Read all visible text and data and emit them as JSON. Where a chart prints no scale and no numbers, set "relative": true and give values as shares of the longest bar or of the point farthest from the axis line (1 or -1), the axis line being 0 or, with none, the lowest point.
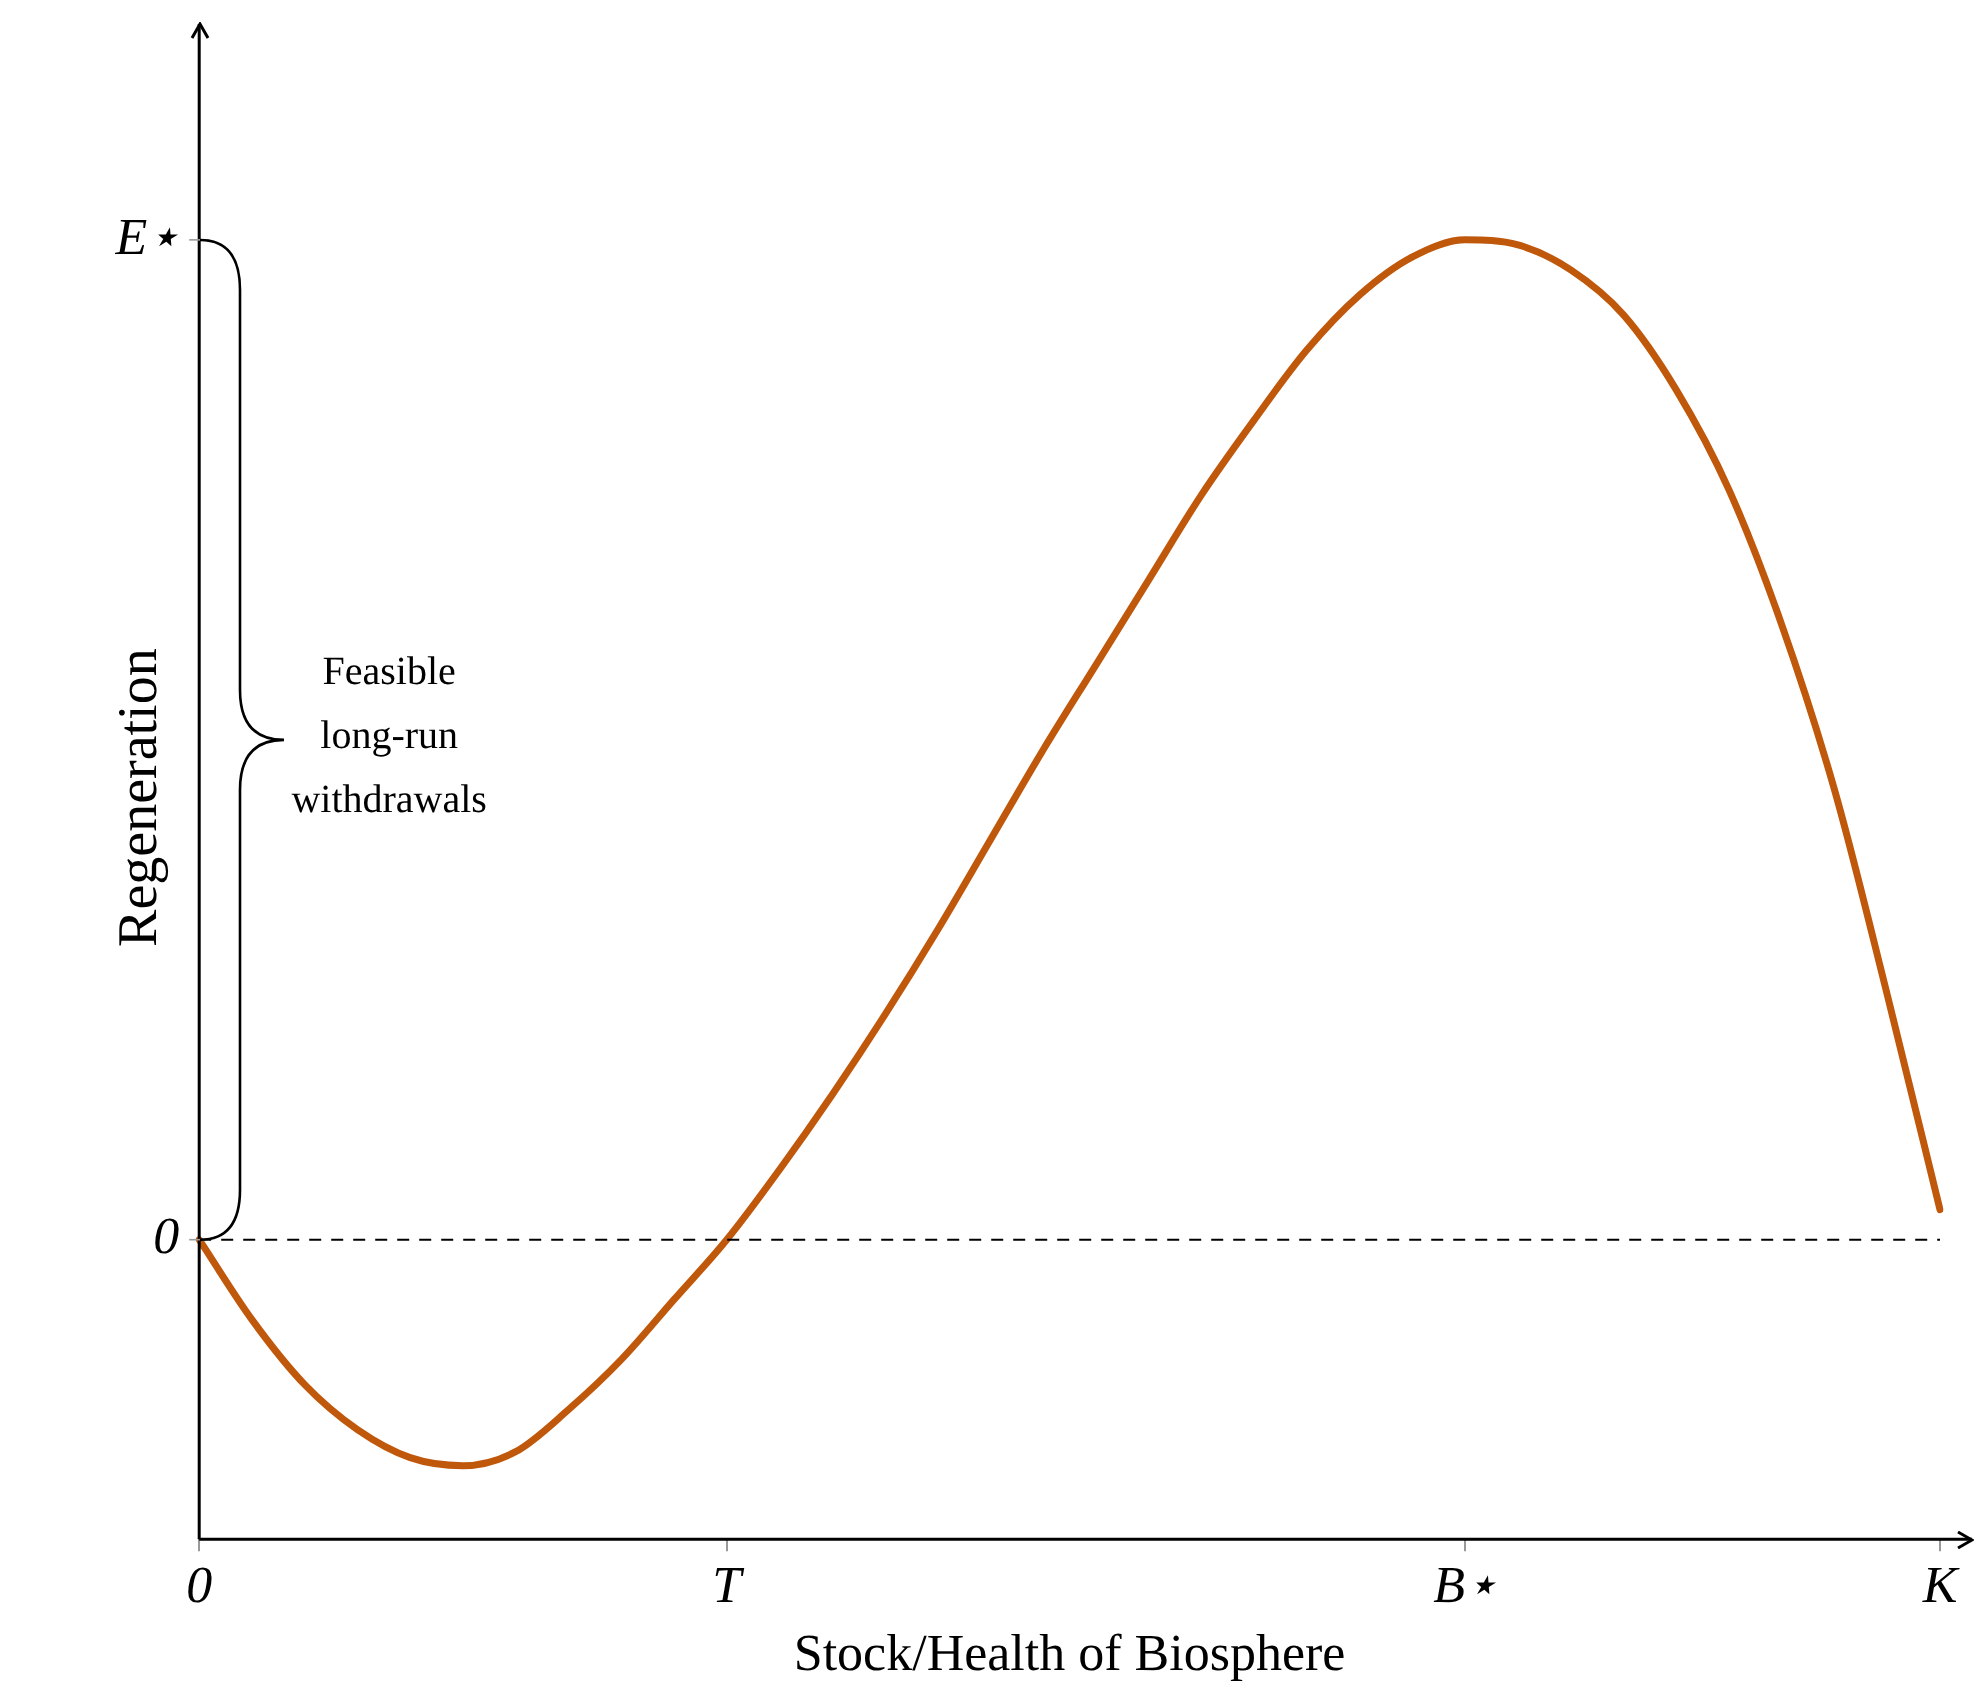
{
  "chart_data": {
    "type": "line",
    "xlabel": "Stock/Health of Biosphere",
    "ylabel": "Regeneration",
    "relative": true,
    "categories": [
      "0",
      null,
      null,
      null,
      null,
      null,
      null,
      null,
      null,
      null,
      "T",
      null,
      null,
      null,
      null,
      null,
      null,
      null,
      null,
      null,
      null,
      null,
      null,
      null,
      "B⋆",
      null,
      null,
      null,
      null,
      null,
      null,
      null,
      null,
      "K"
    ],
    "series": [
      {
        "color": "#c0580c",
        "values": [
          0,
          -0.08,
          -0.145,
          -0.19,
          -0.218,
          -0.226,
          -0.212,
          -0.17,
          -0.12,
          -0.06,
          0,
          0.07,
          0.145,
          0.225,
          0.31,
          0.4,
          0.49,
          0.575,
          0.66,
          0.745,
          0.82,
          0.89,
          0.945,
          0.983,
          1,
          0.995,
          0.97,
          0.925,
          0.85,
          0.75,
          0.615,
          0.45,
          0.245,
          0.03
        ]
      }
    ],
    "ref_lines": [
      {
        "axis": "y",
        "value": 0,
        "line_style": "dashed",
        "color": "#000000"
      }
    ],
    "annotations": [
      "Feasible long-run withdrawals",
      "E⋆",
      "0"
    ],
    "grid": false,
    "legend": false
  }
}
